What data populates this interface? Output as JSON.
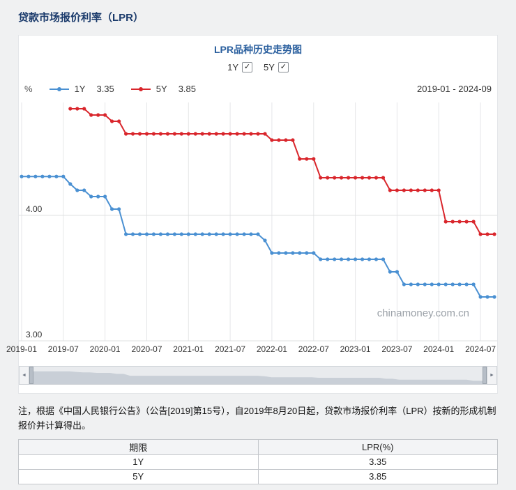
{
  "page": {
    "title": "贷款市场报价利率（LPR）",
    "watermark": "chinamoney.com.cn"
  },
  "icons": {
    "check": "✓",
    "left_arrow": "◄",
    "right_arrow": "►"
  },
  "chart": {
    "title": "LPR品种历史走势图",
    "unit_label": "%",
    "date_range": "2019-01 - 2024-09",
    "toggles": [
      {
        "label": "1Y",
        "checked": true
      },
      {
        "label": "5Y",
        "checked": true
      }
    ],
    "legend": [
      {
        "label": "1Y",
        "value": "3.35",
        "color": "#4a90d2"
      },
      {
        "label": "5Y",
        "value": "3.85",
        "color": "#d9262c"
      }
    ]
  },
  "chart_data": {
    "type": "line",
    "title": "LPR品种历史走势图",
    "xlabel": "",
    "ylabel": "%",
    "ylim": [
      3.0,
      4.95
    ],
    "grid": true,
    "legend_position": "top",
    "x": [
      "2019-01",
      "2019-02",
      "2019-03",
      "2019-04",
      "2019-05",
      "2019-06",
      "2019-07",
      "2019-08",
      "2019-09",
      "2019-10",
      "2019-11",
      "2019-12",
      "2020-01",
      "2020-02",
      "2020-03",
      "2020-04",
      "2020-05",
      "2020-06",
      "2020-07",
      "2020-08",
      "2020-09",
      "2020-10",
      "2020-11",
      "2020-12",
      "2021-01",
      "2021-02",
      "2021-03",
      "2021-04",
      "2021-05",
      "2021-06",
      "2021-07",
      "2021-08",
      "2021-09",
      "2021-10",
      "2021-11",
      "2021-12",
      "2022-01",
      "2022-02",
      "2022-03",
      "2022-04",
      "2022-05",
      "2022-06",
      "2022-07",
      "2022-08",
      "2022-09",
      "2022-10",
      "2022-11",
      "2022-12",
      "2023-01",
      "2023-02",
      "2023-03",
      "2023-04",
      "2023-05",
      "2023-06",
      "2023-07",
      "2023-08",
      "2023-09",
      "2023-10",
      "2023-11",
      "2023-12",
      "2024-01",
      "2024-02",
      "2024-03",
      "2024-04",
      "2024-05",
      "2024-06",
      "2024-07",
      "2024-08",
      "2024-09"
    ],
    "xticks": [
      {
        "index": 0,
        "label": "2019-01"
      },
      {
        "index": 6,
        "label": "2019-07"
      },
      {
        "index": 12,
        "label": "2020-01"
      },
      {
        "index": 18,
        "label": "2020-07"
      },
      {
        "index": 24,
        "label": "2021-01"
      },
      {
        "index": 30,
        "label": "2021-07"
      },
      {
        "index": 36,
        "label": "2022-01"
      },
      {
        "index": 42,
        "label": "2022-07"
      },
      {
        "index": 48,
        "label": "2023-01"
      },
      {
        "index": 54,
        "label": "2023-07"
      },
      {
        "index": 60,
        "label": "2024-01"
      },
      {
        "index": 66,
        "label": "2024-07"
      }
    ],
    "yticks": [
      {
        "value": 4.0,
        "label": "4.00"
      },
      {
        "value": 3.0,
        "label": "3.00"
      }
    ],
    "series": [
      {
        "name": "1Y",
        "color": "#4a90d2",
        "latest": 3.35,
        "values": [
          4.31,
          4.31,
          4.31,
          4.31,
          4.31,
          4.31,
          4.31,
          4.25,
          4.2,
          4.2,
          4.15,
          4.15,
          4.15,
          4.05,
          4.05,
          3.85,
          3.85,
          3.85,
          3.85,
          3.85,
          3.85,
          3.85,
          3.85,
          3.85,
          3.85,
          3.85,
          3.85,
          3.85,
          3.85,
          3.85,
          3.85,
          3.85,
          3.85,
          3.85,
          3.85,
          3.8,
          3.7,
          3.7,
          3.7,
          3.7,
          3.7,
          3.7,
          3.7,
          3.65,
          3.65,
          3.65,
          3.65,
          3.65,
          3.65,
          3.65,
          3.65,
          3.65,
          3.65,
          3.55,
          3.55,
          3.45,
          3.45,
          3.45,
          3.45,
          3.45,
          3.45,
          3.45,
          3.45,
          3.45,
          3.45,
          3.45,
          3.35,
          3.35,
          3.35
        ]
      },
      {
        "name": "5Y",
        "color": "#d9262c",
        "latest": 3.85,
        "values": [
          null,
          null,
          null,
          null,
          null,
          null,
          null,
          4.85,
          4.85,
          4.85,
          4.8,
          4.8,
          4.8,
          4.75,
          4.75,
          4.65,
          4.65,
          4.65,
          4.65,
          4.65,
          4.65,
          4.65,
          4.65,
          4.65,
          4.65,
          4.65,
          4.65,
          4.65,
          4.65,
          4.65,
          4.65,
          4.65,
          4.65,
          4.65,
          4.65,
          4.65,
          4.6,
          4.6,
          4.6,
          4.6,
          4.45,
          4.45,
          4.45,
          4.3,
          4.3,
          4.3,
          4.3,
          4.3,
          4.3,
          4.3,
          4.3,
          4.3,
          4.3,
          4.2,
          4.2,
          4.2,
          4.2,
          4.2,
          4.2,
          4.2,
          4.2,
          3.95,
          3.95,
          3.95,
          3.95,
          3.95,
          3.85,
          3.85,
          3.85
        ]
      }
    ]
  },
  "note": "注，根据《中国人民银行公告》（公告[2019]第15号），自2019年8月20日起，贷款市场报价利率（LPR）按新的形成机制报价并计算得出。",
  "table": {
    "headers": [
      "期限",
      "LPR(%)"
    ],
    "rows": [
      [
        "1Y",
        "3.35"
      ],
      [
        "5Y",
        "3.85"
      ]
    ]
  }
}
